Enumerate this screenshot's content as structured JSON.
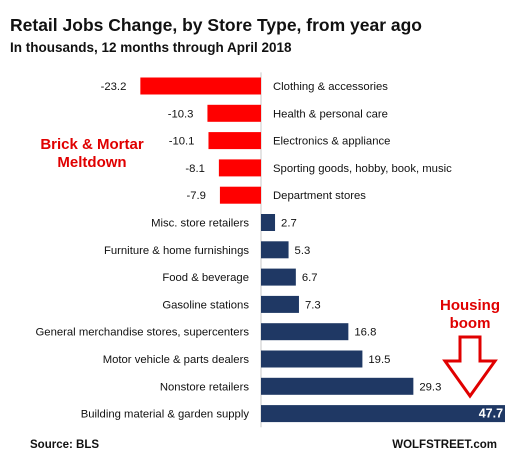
{
  "title": "Retail Jobs Change, by Store Type, from year ago",
  "subtitle": "In thousands, 12 months through April 2018",
  "source": "Source: BLS",
  "brand": "WOLFSTREET.com",
  "annotations": {
    "left_line1": "Brick & Mortar",
    "left_line2": "Meltdown",
    "right_line1": "Housing",
    "right_line2": "boom"
  },
  "colors": {
    "negative": "#ff0000",
    "positive": "#1f3864",
    "annotation": "#e00000",
    "arrow_stroke": "#e00000"
  },
  "chart_data": {
    "type": "bar",
    "orientation": "horizontal",
    "categories": [
      "Clothing & accessories",
      "Health & personal care",
      "Electronics &  appliance",
      "Sporting goods, hobby, book, music",
      "Department stores",
      "Misc. store retailers",
      "Furniture & home furnishings",
      "Food & beverage",
      "Gasoline stations",
      "General merchandise stores, supercenters",
      "Motor vehicle & parts dealers",
      "Nonstore retailers",
      "Building material & garden supply"
    ],
    "values": [
      -23.2,
      -10.3,
      -10.1,
      -8.1,
      -7.9,
      2.7,
      5.3,
      6.7,
      7.3,
      16.8,
      19.5,
      29.3,
      47.7
    ],
    "value_labels": [
      "-23.2",
      "-10.3",
      "-10.1",
      "-8.1",
      "-7.9",
      "2.7",
      "5.3",
      "6.7",
      "7.3",
      "16.8",
      "19.5",
      "29.3",
      "47.7"
    ],
    "title": "Retail Jobs Change, by Store Type, from year ago",
    "xlabel": "",
    "ylabel": "",
    "grid": false,
    "legend": "none"
  }
}
